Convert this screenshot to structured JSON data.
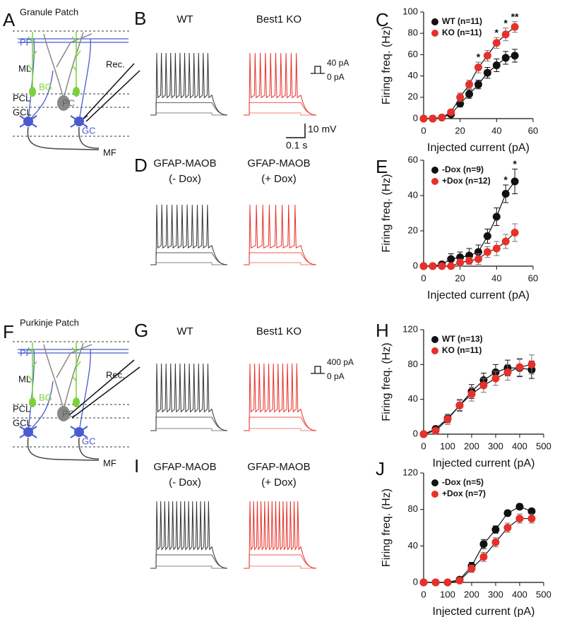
{
  "panel_letters": [
    "A",
    "B",
    "C",
    "D",
    "E",
    "F",
    "G",
    "H",
    "I",
    "J"
  ],
  "diagrams": [
    {
      "title": "Granule Patch",
      "labels": [
        "PF",
        "ML",
        "BG",
        "PCL",
        "PC",
        "GCL",
        "GC",
        "MF",
        "Rec."
      ]
    },
    {
      "title": "Purkinje Patch",
      "labels": [
        "PF",
        "ML",
        "BG",
        "PCL",
        "PC",
        "GCL",
        "GC",
        "MF",
        "Rec."
      ]
    }
  ],
  "trace_labels": [
    [
      "WT",
      "Best1 KO"
    ],
    [
      "GFAP-MAOB",
      "(- Dox)",
      "GFAP-MAOB",
      "(+ Dox)"
    ],
    [
      "WT",
      "Best1 KO"
    ],
    [
      "GFAP-MAOB",
      "(- Dox)",
      "GFAP-MAOB",
      "(+ Dox)"
    ]
  ],
  "step_labels": [
    [
      "40 pA",
      "0 pA"
    ],
    [
      "400 pA",
      "0 pA"
    ]
  ],
  "scale_bar": [
    "10 mV",
    "0.1 s"
  ],
  "chart_data": [
    {
      "type": "line",
      "xlabel": "Injected current (pA)",
      "ylabel": "Firing freq. (Hz)",
      "xlim": [
        0,
        60
      ],
      "ylim": [
        0,
        100
      ],
      "xticks": [
        0,
        20,
        40,
        60
      ],
      "yticks": [
        0,
        20,
        40,
        60,
        80,
        100
      ],
      "legend": "upper left",
      "x": [
        0,
        5,
        10,
        15,
        20,
        25,
        30,
        35,
        40,
        45,
        50
      ],
      "series": [
        {
          "name": "WT (n=11)",
          "color": "#111111",
          "values": [
            0,
            0,
            1,
            4,
            14,
            23,
            32,
            43,
            50,
            57,
            59
          ],
          "errors": [
            0.5,
            0.5,
            1,
            2,
            3,
            4,
            4,
            5,
            6,
            6,
            6
          ]
        },
        {
          "name": "KO (n=11)",
          "color": "#e8302a",
          "values": [
            0,
            0,
            1,
            6,
            20,
            32,
            48,
            59,
            71,
            79,
            86
          ],
          "errors": [
            0.5,
            0.5,
            1,
            2,
            4,
            4,
            5,
            5,
            5,
            6,
            5
          ]
        }
      ],
      "annotations": [
        {
          "x": 30,
          "text": "*"
        },
        {
          "x": 40,
          "text": "*"
        },
        {
          "x": 45,
          "text": "*"
        },
        {
          "x": 50,
          "text": "**"
        }
      ]
    },
    {
      "type": "line",
      "xlabel": "Injected current (pA)",
      "ylabel": "Firing freq. (Hz)",
      "xlim": [
        0,
        60
      ],
      "ylim": [
        0,
        60
      ],
      "xticks": [
        0,
        20,
        40,
        60
      ],
      "yticks": [
        0,
        20,
        40,
        60
      ],
      "legend": "upper left",
      "x": [
        0,
        5,
        10,
        15,
        20,
        25,
        30,
        35,
        40,
        45,
        50
      ],
      "series": [
        {
          "name": "-Dox (n=9)",
          "color": "#111111",
          "values": [
            0,
            0,
            1,
            4,
            5,
            6,
            8,
            17,
            28,
            41,
            48
          ],
          "errors": [
            0.5,
            0.5,
            1,
            3,
            3,
            4,
            4,
            4,
            5,
            5,
            7
          ]
        },
        {
          "name": "+Dox (n=12)",
          "color": "#e8302a",
          "values": [
            0,
            0,
            0,
            0,
            2,
            3,
            4,
            8,
            10,
            14,
            19
          ],
          "errors": [
            0.5,
            0.5,
            0.5,
            0.5,
            2,
            2,
            3,
            3,
            4,
            4,
            5
          ]
        }
      ],
      "annotations": [
        {
          "x": 45,
          "text": "*"
        },
        {
          "x": 50,
          "text": "*"
        }
      ]
    },
    {
      "type": "line",
      "xlabel": "Injected current (pA)",
      "ylabel": "Firing freq. (Hz)",
      "xlim": [
        0,
        500
      ],
      "ylim": [
        0,
        120
      ],
      "xticks": [
        0,
        100,
        200,
        300,
        400,
        500
      ],
      "yticks": [
        0,
        40,
        80,
        120
      ],
      "legend": "upper left",
      "x": [
        0,
        50,
        100,
        150,
        200,
        250,
        300,
        350,
        400,
        450
      ],
      "series": [
        {
          "name": "WT (n=13)",
          "color": "#111111",
          "values": [
            0,
            6,
            18,
            33,
            49,
            62,
            71,
            76,
            76,
            74
          ],
          "errors": [
            1,
            3,
            5,
            6,
            8,
            8,
            9,
            9,
            10,
            10
          ]
        },
        {
          "name": "KO (n=11)",
          "color": "#e8302a",
          "values": [
            0,
            4,
            17,
            33,
            46,
            56,
            64,
            71,
            77,
            80
          ],
          "errors": [
            1,
            3,
            6,
            7,
            8,
            8,
            8,
            9,
            10,
            11
          ]
        }
      ]
    },
    {
      "type": "line",
      "xlabel": "Injected current (pA)",
      "ylabel": "Firing freq. (Hz)",
      "xlim": [
        0,
        500
      ],
      "ylim": [
        0,
        120
      ],
      "xticks": [
        0,
        100,
        200,
        300,
        400,
        500
      ],
      "yticks": [
        0,
        40,
        80,
        120
      ],
      "legend": "upper left",
      "x": [
        0,
        50,
        100,
        150,
        200,
        250,
        300,
        350,
        400,
        450
      ],
      "series": [
        {
          "name": "-Dox (n=5)",
          "color": "#111111",
          "values": [
            0,
            0,
            0,
            3,
            18,
            42,
            58,
            76,
            83,
            78
          ],
          "errors": [
            0.5,
            0.5,
            0.5,
            1,
            4,
            5,
            4,
            3,
            3,
            3
          ]
        },
        {
          "name": "+Dox (n=7)",
          "color": "#e8302a",
          "values": [
            0,
            0,
            0,
            2,
            15,
            28,
            44,
            60,
            70,
            70
          ],
          "errors": [
            0.5,
            0.5,
            0.5,
            1,
            4,
            5,
            5,
            5,
            5,
            5
          ]
        }
      ]
    }
  ]
}
